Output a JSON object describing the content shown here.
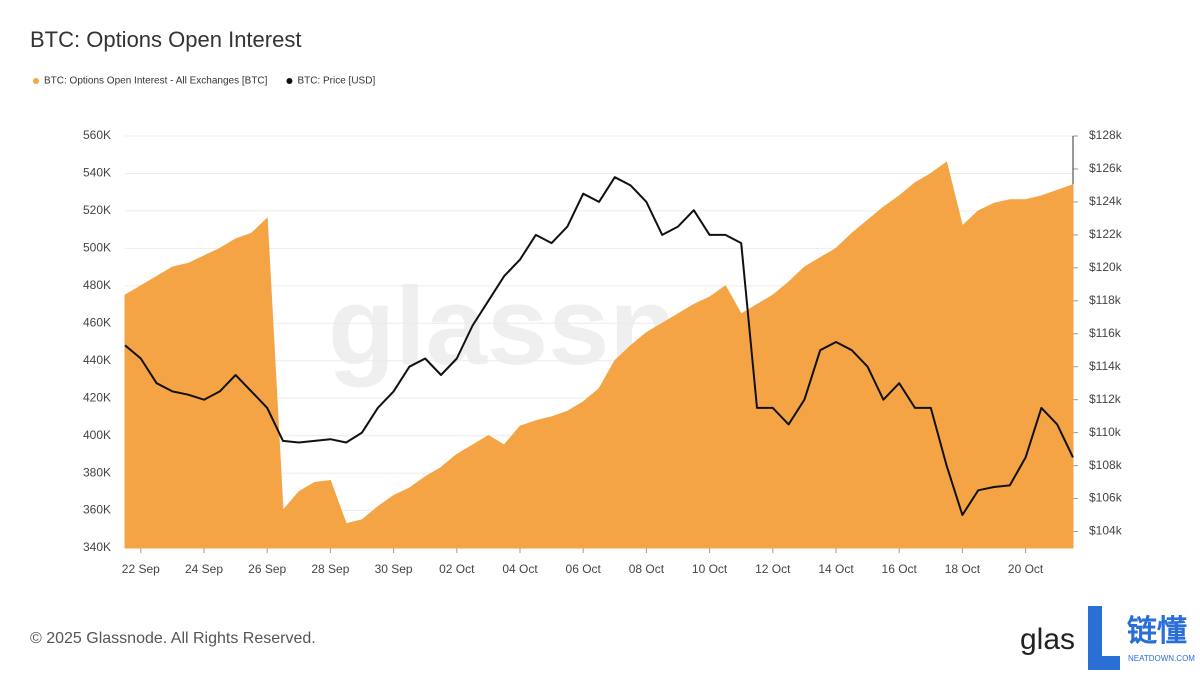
{
  "chart_data": {
    "type": "area-line",
    "title": "BTC: Options Open Interest",
    "legend": "top-left",
    "grid": true,
    "categories": [
      null,
      "22 Sep",
      null,
      null,
      null,
      "24 Sep",
      null,
      null,
      null,
      "26 Sep",
      null,
      null,
      null,
      "28 Sep",
      null,
      null,
      null,
      "30 Sep",
      null,
      null,
      null,
      "02 Oct",
      null,
      null,
      null,
      "04 Oct",
      null,
      null,
      null,
      "06 Oct",
      null,
      null,
      null,
      "08 Oct",
      null,
      null,
      null,
      "10 Oct",
      null,
      null,
      null,
      "12 Oct",
      null,
      null,
      null,
      "14 Oct",
      null,
      null,
      null,
      "16 Oct",
      null,
      null,
      null,
      "18 Oct",
      null,
      null,
      null,
      "20 Oct",
      null,
      null,
      null
    ],
    "series": [
      {
        "name": "BTC: Options Open Interest - All Exchanges [BTC]",
        "color": "#f5a445",
        "axis": "y",
        "values": [
          475000,
          480000,
          485000,
          490000,
          492000,
          496000,
          500000,
          505000,
          508000,
          516000,
          360000,
          370000,
          375000,
          376000,
          353000,
          355000,
          362000,
          368000,
          372000,
          378000,
          383000,
          390000,
          395000,
          400000,
          395000,
          405000,
          408000,
          410000,
          413000,
          418000,
          425000,
          440000,
          448000,
          455000,
          460000,
          465000,
          470000,
          474000,
          480000,
          465000,
          470000,
          475000,
          482000,
          490000,
          495000,
          500000,
          508000,
          515000,
          522000,
          528000,
          535000,
          540000,
          546000,
          512000,
          520000,
          524000,
          526000,
          526000,
          528000,
          531000,
          534000
        ]
      },
      {
        "name": "BTC: Price [USD]",
        "color": "#111111",
        "axis": "y2",
        "values": [
          115300,
          114500,
          113000,
          112500,
          112300,
          112000,
          112500,
          113500,
          112500,
          111500,
          109500,
          109400,
          109500,
          109600,
          109400,
          110000,
          111500,
          112500,
          114000,
          114500,
          113500,
          114500,
          116500,
          118000,
          119500,
          120500,
          122000,
          121500,
          122500,
          124500,
          124000,
          125500,
          125000,
          124000,
          122000,
          122500,
          123500,
          122000,
          122000,
          121500,
          111500,
          111500,
          110500,
          112000,
          115000,
          115500,
          115000,
          114000,
          112000,
          113000,
          111500,
          111500,
          108000,
          105000,
          106500,
          106700,
          106800,
          108500,
          111500,
          110500,
          108500
        ]
      }
    ],
    "ylim": [
      340000,
      560000
    ],
    "yticks": [
      {
        "value": 340000,
        "label": "340K"
      },
      {
        "value": 360000,
        "label": "360K"
      },
      {
        "value": 380000,
        "label": "380K"
      },
      {
        "value": 400000,
        "label": "400K"
      },
      {
        "value": 420000,
        "label": "420K"
      },
      {
        "value": 440000,
        "label": "440K"
      },
      {
        "value": 460000,
        "label": "460K"
      },
      {
        "value": 480000,
        "label": "480K"
      },
      {
        "value": 500000,
        "label": "500K"
      },
      {
        "value": 520000,
        "label": "520K"
      },
      {
        "value": 540000,
        "label": "540K"
      },
      {
        "value": 560000,
        "label": "560K"
      }
    ],
    "y2lim": [
      103000,
      128000
    ],
    "y2ticks": [
      {
        "value": 104000,
        "label": "$104k"
      },
      {
        "value": 106000,
        "label": "$106k"
      },
      {
        "value": 108000,
        "label": "$108k"
      },
      {
        "value": 110000,
        "label": "$110k"
      },
      {
        "value": 112000,
        "label": "$112k"
      },
      {
        "value": 114000,
        "label": "$114k"
      },
      {
        "value": 116000,
        "label": "$116k"
      },
      {
        "value": 118000,
        "label": "$118k"
      },
      {
        "value": 120000,
        "label": "$120k"
      },
      {
        "value": 122000,
        "label": "$122k"
      },
      {
        "value": 124000,
        "label": "$124k"
      },
      {
        "value": 126000,
        "label": "$126k"
      },
      {
        "value": 128000,
        "label": "$128k"
      }
    ]
  },
  "watermark": "glassnode",
  "footer": "© 2025 Glassnode. All Rights Reserved.",
  "logo": {
    "text": "glas",
    "brand": "链懂",
    "site": "NEATDOWN.COM"
  }
}
